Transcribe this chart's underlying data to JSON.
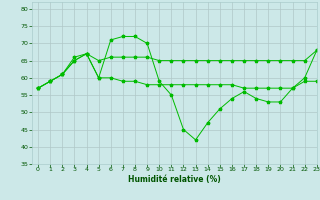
{
  "xlabel": "Humidité relative (%)",
  "xlim": [
    -0.5,
    23
  ],
  "ylim": [
    35,
    82
  ],
  "yticks": [
    35,
    40,
    45,
    50,
    55,
    60,
    65,
    70,
    75,
    80
  ],
  "xticks": [
    0,
    1,
    2,
    3,
    4,
    5,
    6,
    7,
    8,
    9,
    10,
    11,
    12,
    13,
    14,
    15,
    16,
    17,
    18,
    19,
    20,
    21,
    22,
    23
  ],
  "background_color": "#cce8e8",
  "grid_color": "#b0c8c8",
  "line_color": "#00bb00",
  "line1_x": [
    0,
    1,
    2,
    3,
    4,
    5,
    6,
    7,
    8,
    9,
    10,
    11,
    12,
    13,
    14,
    15,
    16,
    17,
    18,
    19,
    20,
    21,
    22,
    23
  ],
  "line1_y": [
    57,
    59,
    61,
    66,
    67,
    60,
    71,
    72,
    72,
    70,
    59,
    55,
    45,
    42,
    47,
    51,
    54,
    56,
    54,
    53,
    53,
    57,
    60,
    68
  ],
  "line2_x": [
    0,
    1,
    2,
    3,
    4,
    5,
    6,
    7,
    8,
    9,
    10,
    11,
    12,
    13,
    14,
    15,
    16,
    17,
    18,
    19,
    20,
    21,
    22,
    23
  ],
  "line2_y": [
    57,
    59,
    61,
    65,
    67,
    60,
    60,
    59,
    59,
    58,
    58,
    58,
    58,
    58,
    58,
    58,
    58,
    57,
    57,
    57,
    57,
    57,
    59,
    59
  ],
  "line3_x": [
    0,
    1,
    2,
    3,
    4,
    5,
    6,
    7,
    8,
    9,
    10,
    11,
    12,
    13,
    14,
    15,
    16,
    17,
    18,
    19,
    20,
    21,
    22,
    23
  ],
  "line3_y": [
    57,
    59,
    61,
    65,
    67,
    65,
    66,
    66,
    66,
    66,
    65,
    65,
    65,
    65,
    65,
    65,
    65,
    65,
    65,
    65,
    65,
    65,
    65,
    68
  ]
}
